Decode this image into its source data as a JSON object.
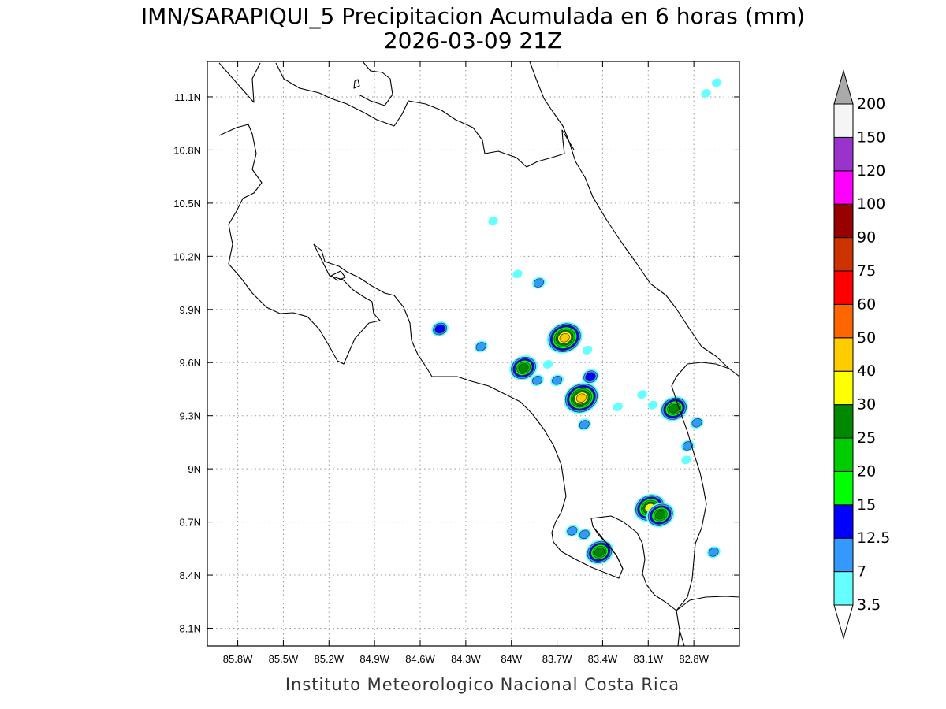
{
  "title": {
    "line1": "IMN/SARAPIQUI_5 Precipitacion Acumulada en 6 horas (mm)",
    "line2": "2026-03-09 21Z"
  },
  "credit": "Instituto Meteorologico Nacional Costa Rica",
  "axes": {
    "lon_ticks": [
      "85.8W",
      "85.5W",
      "85.2W",
      "84.9W",
      "84.6W",
      "84.3W",
      "84W",
      "83.7W",
      "83.4W",
      "83.1W",
      "82.8W"
    ],
    "lat_ticks": [
      "11.1N",
      "10.8N",
      "10.5N",
      "10.2N",
      "9.9N",
      "9.6N",
      "9.3N",
      "9N",
      "8.7N",
      "8.4N",
      "8.1N"
    ],
    "lon_values": [
      -85.8,
      -85.5,
      -85.2,
      -84.9,
      -84.6,
      -84.3,
      -84.0,
      -83.7,
      -83.4,
      -83.1,
      -82.8
    ],
    "lat_values": [
      11.1,
      10.8,
      10.5,
      10.2,
      9.9,
      9.6,
      9.3,
      9.0,
      8.7,
      8.4,
      8.1
    ],
    "lon_range": [
      -86.0,
      -82.5
    ],
    "lat_range": [
      8.0,
      11.3
    ],
    "grid": true
  },
  "legend": {
    "placement": "right",
    "labels": [
      "3.5",
      "7",
      "12.5",
      "15",
      "20",
      "25",
      "30",
      "40",
      "50",
      "60",
      "75",
      "90",
      "100",
      "120",
      "150",
      "200"
    ],
    "colors": [
      "#66ffff",
      "#3399ff",
      "#0000ff",
      "#00ff00",
      "#00cc00",
      "#008800",
      "#ffff00",
      "#ffcc00",
      "#ff6600",
      "#ff0000",
      "#cc3300",
      "#990000",
      "#ff00ff",
      "#9933cc",
      "#f5f5f5",
      "#aaaaaa"
    ]
  },
  "rain_cells": [
    {
      "lon": -84.47,
      "lat": 9.79,
      "peak": 12.5
    },
    {
      "lon": -84.2,
      "lat": 9.69,
      "peak": 7
    },
    {
      "lon": -84.12,
      "lat": 10.4,
      "peak": 3.5
    },
    {
      "lon": -83.96,
      "lat": 10.1,
      "peak": 3.5
    },
    {
      "lon": -83.82,
      "lat": 10.05,
      "peak": 7
    },
    {
      "lon": -83.65,
      "lat": 9.74,
      "peak": 40
    },
    {
      "lon": -83.92,
      "lat": 9.57,
      "peak": 25
    },
    {
      "lon": -83.83,
      "lat": 9.5,
      "peak": 7
    },
    {
      "lon": -83.76,
      "lat": 9.59,
      "peak": 3.5
    },
    {
      "lon": -83.7,
      "lat": 9.5,
      "peak": 7
    },
    {
      "lon": -83.54,
      "lat": 9.4,
      "peak": 40
    },
    {
      "lon": -83.48,
      "lat": 9.52,
      "peak": 12.5
    },
    {
      "lon": -83.52,
      "lat": 9.25,
      "peak": 7
    },
    {
      "lon": -83.5,
      "lat": 9.67,
      "peak": 3.5
    },
    {
      "lon": -82.93,
      "lat": 9.34,
      "peak": 25
    },
    {
      "lon": -82.78,
      "lat": 9.26,
      "peak": 7
    },
    {
      "lon": -82.84,
      "lat": 9.13,
      "peak": 7
    },
    {
      "lon": -83.07,
      "lat": 9.36,
      "peak": 3.5
    },
    {
      "lon": -83.09,
      "lat": 8.78,
      "peak": 30
    },
    {
      "lon": -83.02,
      "lat": 8.74,
      "peak": 25
    },
    {
      "lon": -83.42,
      "lat": 8.53,
      "peak": 25
    },
    {
      "lon": -83.52,
      "lat": 8.63,
      "peak": 7
    },
    {
      "lon": -83.6,
      "lat": 8.65,
      "peak": 7
    },
    {
      "lon": -82.67,
      "lat": 8.53,
      "peak": 7
    },
    {
      "lon": -82.72,
      "lat": 11.12,
      "peak": 3.5
    },
    {
      "lon": -82.65,
      "lat": 11.18,
      "peak": 3.5
    },
    {
      "lon": -83.14,
      "lat": 9.42,
      "peak": 3.5
    },
    {
      "lon": -83.3,
      "lat": 9.35,
      "peak": 3.5
    },
    {
      "lon": -82.85,
      "lat": 9.05,
      "peak": 3.5
    }
  ]
}
